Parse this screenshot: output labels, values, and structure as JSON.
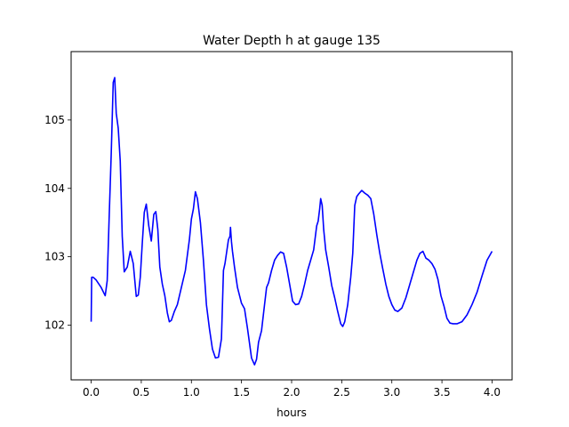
{
  "chart_data": {
    "type": "line",
    "title": "Water Depth h at gauge 135",
    "xlabel": "hours",
    "ylabel": "",
    "xlim": [
      -0.2,
      4.2
    ],
    "ylim": [
      101.2,
      106.0
    ],
    "xticks": [
      0.0,
      0.5,
      1.0,
      1.5,
      2.0,
      2.5,
      3.0,
      3.5,
      4.0
    ],
    "xtick_labels": [
      "0.0",
      "0.5",
      "1.0",
      "1.5",
      "2.0",
      "2.5",
      "3.0",
      "3.5",
      "4.0"
    ],
    "yticks": [
      102,
      103,
      104,
      105
    ],
    "ytick_labels": [
      "102",
      "103",
      "104",
      "105"
    ],
    "grid": false,
    "series": [
      {
        "color": "#0000ff",
        "x": [
          0.0,
          0.005,
          0.02,
          0.05,
          0.1,
          0.14,
          0.16,
          0.18,
          0.2,
          0.22,
          0.235,
          0.25,
          0.27,
          0.29,
          0.31,
          0.33,
          0.36,
          0.39,
          0.42,
          0.45,
          0.47,
          0.49,
          0.51,
          0.53,
          0.55,
          0.575,
          0.6,
          0.625,
          0.645,
          0.665,
          0.685,
          0.71,
          0.735,
          0.76,
          0.78,
          0.8,
          0.83,
          0.86,
          0.9,
          0.94,
          0.98,
          1.0,
          1.02,
          1.04,
          1.06,
          1.09,
          1.12,
          1.15,
          1.18,
          1.21,
          1.24,
          1.27,
          1.3,
          1.32,
          1.335,
          1.355,
          1.37,
          1.385,
          1.39,
          1.4,
          1.41,
          1.43,
          1.46,
          1.5,
          1.53,
          1.56,
          1.6,
          1.63,
          1.65,
          1.67,
          1.7,
          1.73,
          1.75,
          1.77,
          1.8,
          1.83,
          1.86,
          1.89,
          1.92,
          1.95,
          1.98,
          2.01,
          2.04,
          2.07,
          2.1,
          2.13,
          2.16,
          2.19,
          2.22,
          2.25,
          2.265,
          2.28,
          2.29,
          2.305,
          2.32,
          2.34,
          2.37,
          2.4,
          2.43,
          2.46,
          2.49,
          2.51,
          2.53,
          2.56,
          2.59,
          2.61,
          2.63,
          2.65,
          2.67,
          2.7,
          2.73,
          2.76,
          2.79,
          2.82,
          2.85,
          2.88,
          2.91,
          2.94,
          2.97,
          3.0,
          3.03,
          3.06,
          3.1,
          3.14,
          3.18,
          3.22,
          3.25,
          3.28,
          3.31,
          3.34,
          3.37,
          3.4,
          3.43,
          3.46,
          3.49,
          3.52,
          3.55,
          3.58,
          3.61,
          3.65,
          3.7,
          3.75,
          3.8,
          3.85,
          3.9,
          3.95,
          4.0
        ],
        "y": [
          102.05,
          102.7,
          102.7,
          102.66,
          102.55,
          102.43,
          102.65,
          103.6,
          104.5,
          105.55,
          105.62,
          105.1,
          104.88,
          104.4,
          103.3,
          102.78,
          102.85,
          103.08,
          102.9,
          102.42,
          102.44,
          102.7,
          103.2,
          103.65,
          103.77,
          103.45,
          103.23,
          103.62,
          103.66,
          103.4,
          102.85,
          102.6,
          102.43,
          102.18,
          102.05,
          102.07,
          102.2,
          102.3,
          102.55,
          102.8,
          103.25,
          103.55,
          103.7,
          103.95,
          103.85,
          103.5,
          102.95,
          102.3,
          101.95,
          101.65,
          101.52,
          101.53,
          101.8,
          102.8,
          102.9,
          103.1,
          103.25,
          103.3,
          103.43,
          103.22,
          103.08,
          102.85,
          102.55,
          102.32,
          102.24,
          101.95,
          101.52,
          101.42,
          101.5,
          101.75,
          101.92,
          102.3,
          102.55,
          102.62,
          102.8,
          102.95,
          103.02,
          103.07,
          103.05,
          102.85,
          102.6,
          102.35,
          102.3,
          102.31,
          102.42,
          102.6,
          102.8,
          102.95,
          103.1,
          103.45,
          103.52,
          103.7,
          103.85,
          103.75,
          103.4,
          103.1,
          102.85,
          102.58,
          102.4,
          102.2,
          102.02,
          101.98,
          102.05,
          102.3,
          102.7,
          103.05,
          103.75,
          103.88,
          103.92,
          103.97,
          103.93,
          103.9,
          103.85,
          103.62,
          103.32,
          103.05,
          102.82,
          102.6,
          102.42,
          102.3,
          102.22,
          102.2,
          102.25,
          102.4,
          102.6,
          102.8,
          102.95,
          103.05,
          103.08,
          102.98,
          102.95,
          102.9,
          102.82,
          102.67,
          102.43,
          102.28,
          102.1,
          102.03,
          102.02,
          102.02,
          102.05,
          102.15,
          102.3,
          102.48,
          102.72,
          102.95,
          103.08
        ]
      }
    ]
  }
}
